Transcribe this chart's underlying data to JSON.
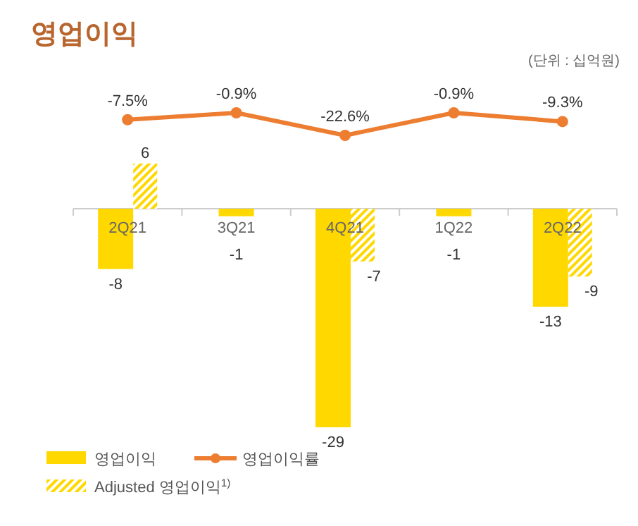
{
  "chart_data": [
    {
      "type": "line",
      "title": "영업이익",
      "annotations": [
        "(단위 : 십억원)"
      ],
      "categories": [
        null,
        null,
        null,
        null,
        null
      ],
      "series": [
        {
          "name": "영업이익률",
          "color": "#ed7d31",
          "values": [
            -7.5,
            -0.9,
            -22.6,
            -0.9,
            -9.3
          ],
          "value_labels": [
            "-7.5%",
            "-0.9%",
            "-22.6%",
            "-0.9%",
            "-9.3%"
          ]
        }
      ],
      "marker": "circle",
      "legend": "bottom left"
    },
    {
      "type": "bar",
      "categories": [
        "2Q21",
        "3Q21",
        "4Q21",
        "1Q22",
        "2Q22"
      ],
      "series": [
        {
          "name": "영업이익",
          "color": "#ffd800",
          "values": [
            -8,
            -1,
            -29,
            -1,
            -13
          ]
        },
        {
          "name": "Adjusted 영업이익$^{1)}$",
          "color": "#ffd800",
          "values": [
            6,
            null,
            -7,
            null,
            -9
          ]
        }
      ],
      "data_labels": true,
      "legend": "bottom left"
    }
  ]
}
